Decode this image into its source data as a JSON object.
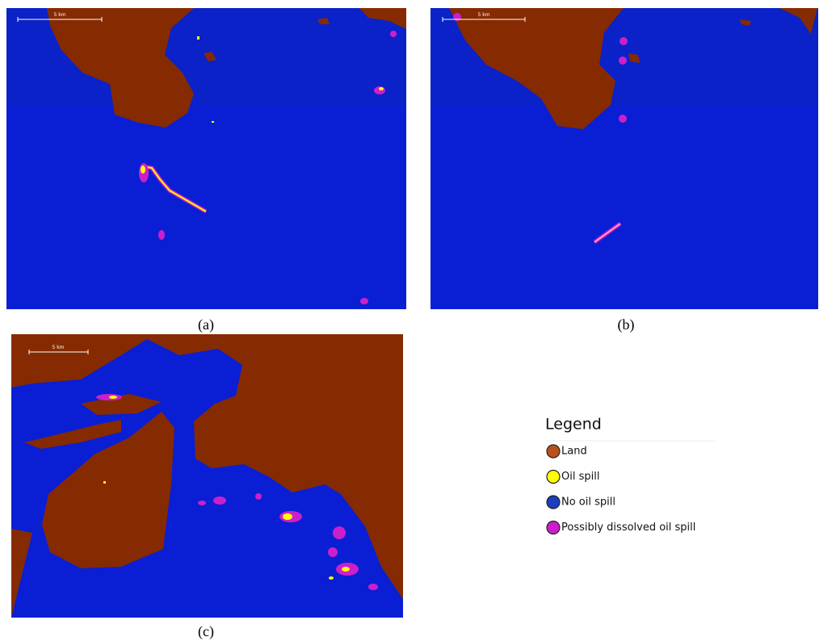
{
  "panels": [
    {
      "label": "(a)",
      "scale_label": "5 km"
    },
    {
      "label": "(b)",
      "scale_label": "5 km"
    },
    {
      "label": "(c)",
      "scale_label": "5 km"
    }
  ],
  "legend": {
    "title": "Legend",
    "items": [
      {
        "label": "Land",
        "color": "#b8501c"
      },
      {
        "label": "Oil spill",
        "color": "#ffff00"
      },
      {
        "label": "No oil spill",
        "color": "#1a3ec0"
      },
      {
        "label": "Possibly dissolved oil spill",
        "color": "#cc1fcc"
      }
    ]
  }
}
